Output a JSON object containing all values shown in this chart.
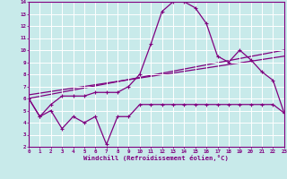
{
  "xlabel": "Windchill (Refroidissement éolien,°C)",
  "bg_color": "#c8eaea",
  "line_color": "#800080",
  "grid_color": "#ffffff",
  "xmin": 0,
  "xmax": 23,
  "ymin": 2,
  "ymax": 14,
  "series_jagged_x": [
    0,
    1,
    2,
    3,
    4,
    5,
    6,
    7,
    8,
    9,
    10,
    11,
    12,
    13,
    14,
    15,
    16,
    17,
    18,
    19,
    20,
    21,
    22,
    23
  ],
  "series_jagged_y": [
    6.0,
    4.5,
    5.0,
    3.5,
    4.5,
    4.0,
    4.5,
    2.2,
    4.5,
    4.5,
    5.5,
    5.5,
    5.5,
    5.5,
    5.5,
    5.5,
    5.5,
    5.5,
    5.5,
    5.5,
    5.5,
    5.5,
    5.5,
    4.8
  ],
  "series_curve_x": [
    0,
    1,
    2,
    3,
    4,
    5,
    6,
    7,
    8,
    9,
    10,
    11,
    12,
    13,
    14,
    15,
    16,
    17,
    18,
    19,
    20,
    21,
    22,
    23
  ],
  "series_curve_y": [
    6.0,
    4.5,
    5.5,
    6.2,
    6.2,
    6.2,
    6.5,
    6.5,
    6.5,
    7.0,
    8.0,
    10.5,
    13.2,
    14.0,
    14.0,
    13.5,
    12.2,
    9.5,
    9.0,
    10.0,
    9.2,
    8.2,
    7.5,
    4.8
  ],
  "series_line1_x": [
    0,
    23
  ],
  "series_line1_y": [
    6.0,
    10.0
  ],
  "series_line2_x": [
    0,
    23
  ],
  "series_line2_y": [
    6.3,
    9.5
  ],
  "xtick_labels": [
    "0",
    "1",
    "2",
    "3",
    "4",
    "5",
    "6",
    "7",
    "8",
    "9",
    "10",
    "11",
    "12",
    "13",
    "14",
    "15",
    "16",
    "17",
    "18",
    "19",
    "20",
    "21",
    "22",
    "23"
  ],
  "ytick_labels": [
    "2",
    "3",
    "4",
    "5",
    "6",
    "7",
    "8",
    "9",
    "10",
    "11",
    "12",
    "13",
    "14"
  ]
}
